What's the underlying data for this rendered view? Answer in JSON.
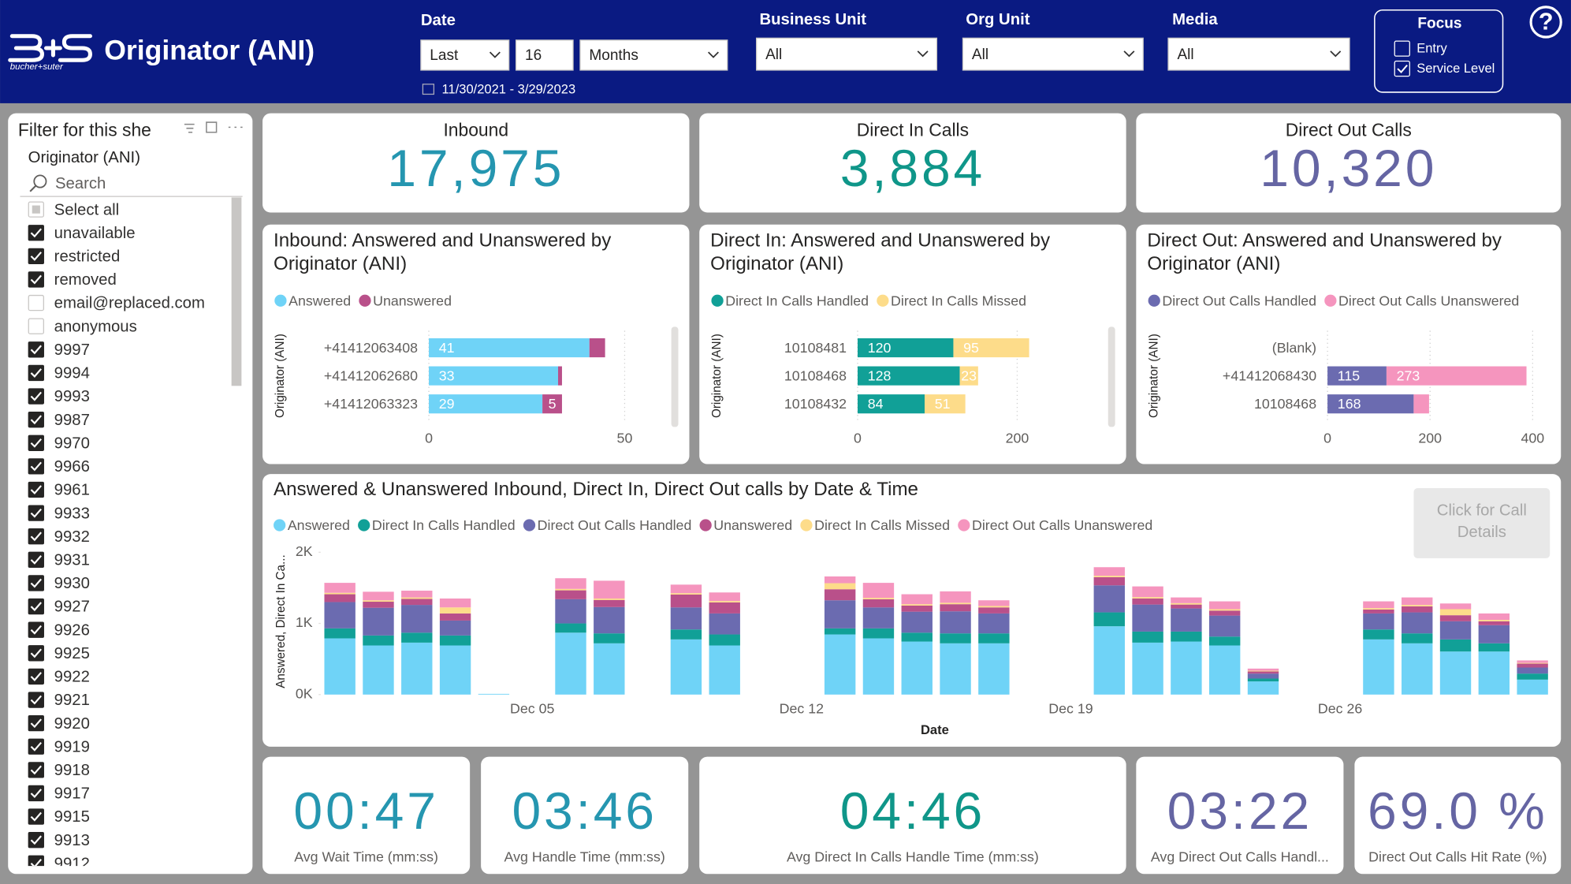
{
  "header": {
    "logo": "bucher+suter",
    "title": "Originator (ANI)"
  },
  "filters": {
    "date": {
      "label": "Date",
      "period": "Last",
      "count": 16,
      "unit": "Months",
      "range": "11/30/2021 - 3/29/2023"
    },
    "business_unit": {
      "label": "Business Unit",
      "value": "All"
    },
    "org_unit": {
      "label": "Org Unit",
      "value": "All"
    },
    "media": {
      "label": "Media",
      "value": "All"
    },
    "focus": {
      "label": "Focus",
      "options": [
        {
          "label": "Entry",
          "checked": false
        },
        {
          "label": "Service Level",
          "checked": true
        }
      ]
    }
  },
  "help": "?",
  "slicer": {
    "title": "Filter for this she",
    "field": "Originator (ANI)",
    "search": "Search",
    "items": [
      {
        "label": "Select all",
        "checked": "partial"
      },
      {
        "label": "unavailable",
        "checked": true
      },
      {
        "label": "restricted",
        "checked": true
      },
      {
        "label": "removed",
        "checked": true
      },
      {
        "label": "email@replaced.com",
        "checked": false
      },
      {
        "label": "anonymous",
        "checked": false
      },
      {
        "label": "9997",
        "checked": true
      },
      {
        "label": "9994",
        "checked": true
      },
      {
        "label": "9993",
        "checked": true
      },
      {
        "label": "9987",
        "checked": true
      },
      {
        "label": "9970",
        "checked": true
      },
      {
        "label": "9966",
        "checked": true
      },
      {
        "label": "9961",
        "checked": true
      },
      {
        "label": "9933",
        "checked": true
      },
      {
        "label": "9932",
        "checked": true
      },
      {
        "label": "9931",
        "checked": true
      },
      {
        "label": "9930",
        "checked": true
      },
      {
        "label": "9927",
        "checked": true
      },
      {
        "label": "9926",
        "checked": true
      },
      {
        "label": "9925",
        "checked": true
      },
      {
        "label": "9922",
        "checked": true
      },
      {
        "label": "9921",
        "checked": true
      },
      {
        "label": "9920",
        "checked": true
      },
      {
        "label": "9919",
        "checked": true
      },
      {
        "label": "9918",
        "checked": true
      },
      {
        "label": "9917",
        "checked": true
      },
      {
        "label": "9915",
        "checked": true
      },
      {
        "label": "9913",
        "checked": true
      },
      {
        "label": "9912",
        "checked": true
      }
    ]
  },
  "kpis": [
    {
      "label": "Inbound",
      "value": "17,975",
      "color": "#2596b0"
    },
    {
      "label": "Direct In Calls",
      "value": "3,884",
      "color": "#0f9689"
    },
    {
      "label": "Direct Out Calls",
      "value": "10,320",
      "color": "#6565a3"
    }
  ],
  "charts": [
    {
      "type": "bar",
      "orientation": "horizontal",
      "stacked": true,
      "title": "Inbound: Answered and Unanswered by Originator (ANI)",
      "y_label": "Originator (ANI)",
      "categories": [
        "+41412063408",
        "+41412062680",
        "+41412063323"
      ],
      "series": [
        {
          "name": "Answered",
          "color": "#6fd3f7",
          "values": [
            41,
            33,
            29
          ]
        },
        {
          "name": "Unanswered",
          "color": "#b9508a",
          "values": [
            4,
            1,
            5
          ]
        }
      ],
      "xlim": [
        0,
        55
      ],
      "xticks": [
        0,
        50
      ],
      "grid": true
    },
    {
      "type": "bar",
      "orientation": "horizontal",
      "stacked": true,
      "title": "Direct In: Answered and Unanswered by Originator (ANI)",
      "y_label": "Originator (ANI)",
      "categories": [
        "10108481",
        "10108468",
        "10108432"
      ],
      "series": [
        {
          "name": "Direct In Calls Handled",
          "color": "#11a097",
          "values": [
            120,
            128,
            84
          ]
        },
        {
          "name": "Direct In Calls Missed",
          "color": "#fddc8a",
          "values": [
            95,
            23,
            51
          ]
        }
      ],
      "xlim": [
        0,
        270
      ],
      "xticks": [
        0,
        200
      ],
      "grid": true
    },
    {
      "type": "bar",
      "orientation": "horizontal",
      "stacked": true,
      "title": "Direct Out: Answered and Unanswered by Originator (ANI)",
      "y_label": "Originator (ANI)",
      "categories": [
        "(Blank)",
        "+41412068430",
        "10108468"
      ],
      "series": [
        {
          "name": "Direct Out Calls Handled",
          "color": "#6b6bb0",
          "values": [
            null,
            115,
            168
          ]
        },
        {
          "name": "Direct Out Calls Unanswered",
          "color": "#f595be",
          "values": [
            null,
            273,
            30
          ]
        }
      ],
      "xlim": [
        0,
        420
      ],
      "xticks": [
        0,
        200,
        400
      ],
      "grid": true
    }
  ],
  "timeline": {
    "type": "bar",
    "stacked": true,
    "title": "Answered & Unanswered Inbound, Direct In, Direct Out calls by Date & Time",
    "x_label": "Date",
    "y_label": "Answered, Direct In Ca...",
    "categories": [
      null,
      null,
      null,
      null,
      null,
      "Dec 05",
      null,
      null,
      null,
      null,
      null,
      null,
      "Dec 12",
      null,
      null,
      null,
      null,
      null,
      null,
      "Dec 19",
      null,
      null,
      null,
      null,
      null,
      null,
      "Dec 26",
      null,
      null,
      null,
      null,
      null
    ],
    "series": [
      {
        "name": "Answered",
        "color": "#6fd3f7",
        "values": [
          790,
          690,
          730,
          690,
          10,
          null,
          870,
          720,
          null,
          775,
          690,
          null,
          null,
          845,
          790,
          745,
          720,
          720,
          null,
          null,
          960,
          730,
          745,
          690,
          185,
          null,
          null,
          775,
          720,
          605,
          605,
          210
        ]
      },
      {
        "name": "Direct In Calls Handled",
        "color": "#11a097",
        "values": [
          140,
          140,
          140,
          140,
          0,
          null,
          130,
          140,
          null,
          140,
          155,
          null,
          null,
          85,
          140,
          125,
          140,
          140,
          null,
          null,
          195,
          155,
          140,
          125,
          40,
          null,
          null,
          140,
          140,
          170,
          115,
          85
        ]
      },
      {
        "name": "Direct Out Calls Handled",
        "color": "#6b6bb0",
        "values": [
          370,
          390,
          390,
          210,
          0,
          null,
          340,
          370,
          null,
          310,
          295,
          null,
          null,
          395,
          295,
          295,
          310,
          280,
          null,
          null,
          380,
          380,
          325,
          295,
          70,
          null,
          null,
          225,
          295,
          255,
          255,
          85
        ]
      },
      {
        "name": "Unanswered",
        "color": "#b9508a",
        "values": [
          110,
          85,
          85,
          100,
          0,
          null,
          125,
          100,
          null,
          180,
          155,
          null,
          null,
          155,
          115,
          85,
          100,
          85,
          null,
          null,
          115,
          85,
          55,
          70,
          30,
          null,
          null,
          55,
          85,
          85,
          55,
          55
        ]
      },
      {
        "name": "Direct In Calls Missed",
        "color": "#fddc8a",
        "values": [
          20,
          20,
          20,
          85,
          0,
          null,
          20,
          20,
          null,
          20,
          20,
          null,
          null,
          85,
          20,
          20,
          20,
          20,
          null,
          null,
          20,
          20,
          20,
          20,
          10,
          null,
          null,
          20,
          20,
          85,
          20,
          10
        ]
      },
      {
        "name": "Direct Out Calls Unanswered",
        "color": "#f595be",
        "values": [
          140,
          120,
          95,
          125,
          0,
          null,
          150,
          250,
          null,
          120,
          120,
          null,
          null,
          95,
          210,
          140,
          160,
          80,
          null,
          null,
          120,
          150,
          80,
          110,
          30,
          null,
          null,
          95,
          105,
          80,
          90,
          35
        ]
      }
    ],
    "ylim": [
      0,
      2000
    ],
    "yticks": [
      {
        "value": 0,
        "label": "0K"
      },
      {
        "value": 1000,
        "label": "1K"
      },
      {
        "value": 2000,
        "label": "2K"
      }
    ],
    "button": "Click for Call Details"
  },
  "metrics": [
    {
      "value": "00:47",
      "label": "Avg Wait Time (mm:ss)",
      "color": "#2596b0"
    },
    {
      "value": "03:46",
      "label": "Avg Handle Time (mm:ss)",
      "color": "#2596b0"
    },
    {
      "value": "04:46",
      "label": "Avg Direct In Calls Handle Time (mm:ss)",
      "color": "#0f9689"
    },
    {
      "value": "03:22",
      "label": "Avg Direct Out Calls Handl...",
      "color": "#6565a3"
    },
    {
      "value": "69.0 %",
      "label": "Direct Out Calls Hit Rate (%)",
      "color": "#6565a3"
    }
  ]
}
